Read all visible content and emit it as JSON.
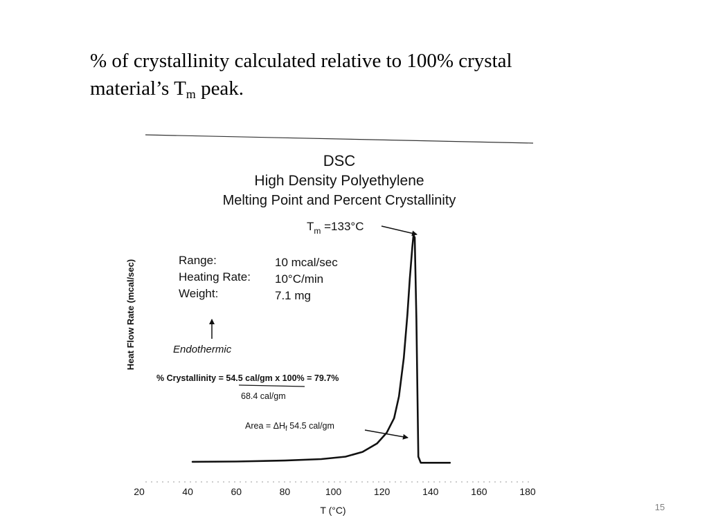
{
  "slide": {
    "title_line1": "% of crystallinity calculated relative to 100% crystal",
    "title_line2_prefix": "material’s T",
    "title_line2_sub": "m",
    "title_line2_suffix": " peak.",
    "slide_number": "15"
  },
  "chart_data": {
    "type": "line",
    "title_lines": [
      "DSC",
      "High Density Polyethylene",
      "Melting Point and Percent Crystallinity"
    ],
    "xlabel": "T (°C)",
    "ylabel": "Heat Flow Rate (mcal/sec)",
    "xlim": [
      20,
      180
    ],
    "x_ticks": [
      "20",
      "40",
      "60",
      "80",
      "100",
      "120",
      "140",
      "160",
      "180"
    ],
    "grid": false,
    "series": [
      {
        "x": [
          42,
          60,
          80,
          95,
          105,
          112,
          118,
          122,
          125,
          127,
          129,
          130.5,
          131.5,
          132.5,
          133,
          133.5,
          134.2,
          135,
          136,
          140,
          148
        ],
        "y": [
          0.9,
          1.0,
          1.4,
          2.0,
          3.0,
          5.0,
          8.5,
          13,
          19,
          28,
          44,
          62,
          77,
          90,
          95,
          94,
          60,
          3,
          0.5,
          0.5,
          0.5
        ]
      }
    ],
    "annotations": {
      "tm_label_main": "T",
      "tm_label_sub": "m",
      "tm_label_value": " =133°C",
      "tm_x": 133,
      "params": [
        {
          "label": "Range:",
          "value": "10 mcal/sec"
        },
        {
          "label": "Heating Rate:",
          "value": "10°C/min"
        },
        {
          "label": "Weight:",
          "value": "7.1 mg"
        }
      ],
      "endothermic_label": "Endothermic",
      "crystallinity_formula_line1": "% Crystallinity = 54.5 cal/gm x 100% = 79.7%",
      "crystallinity_formula_line2": "68.4 cal/gm",
      "area_label_prefix": "Area = ΔH",
      "area_label_sub": "f",
      "area_label_value": " 54.5 cal/gm"
    }
  }
}
